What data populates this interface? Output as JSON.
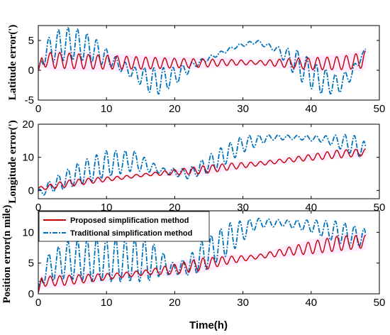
{
  "colors": {
    "proposed": "#c00000",
    "traditional": "#0072bd",
    "band": "#ff00ff"
  },
  "xlabel": "Time(h)",
  "legend": {
    "proposed": "Proposed simplification method",
    "traditional": "Traditional simplification method",
    "placement": "top-left (bottom panel)"
  },
  "chart_data": [
    {
      "type": "line",
      "ylabel": "Latitude error(')",
      "xlim": [
        0,
        50
      ],
      "ylim": [
        -5,
        7.5
      ],
      "xticks": [
        "0",
        "10",
        "20",
        "30",
        "40",
        "50"
      ],
      "yticks": [
        "-5",
        "0",
        "5"
      ],
      "xtick_values": [
        0,
        10,
        20,
        30,
        40,
        50
      ],
      "ytick_values": [
        -5,
        0,
        5
      ],
      "grid": false,
      "series": [
        {
          "name": "Proposed simplification method",
          "osc_period_h": 1.4,
          "x": [
            0,
            0.5,
            2,
            4,
            8,
            12,
            16,
            20,
            24,
            28,
            32,
            36,
            40,
            44,
            46,
            48
          ],
          "trend": [
            0.0,
            1.5,
            1.7,
            1.6,
            1.4,
            1.3,
            1.2,
            1.2,
            1.2,
            1.3,
            1.3,
            1.2,
            1.1,
            1.2,
            1.4,
            1.8
          ],
          "amplitude": [
            0.0,
            0.8,
            1.4,
            1.3,
            1.2,
            1.1,
            1.0,
            0.8,
            0.7,
            0.5,
            0.3,
            0.7,
            1.0,
            1.1,
            1.2,
            1.4
          ]
        },
        {
          "name": "Traditional simplification method",
          "osc_period_h": 1.4,
          "x": [
            0,
            1,
            3,
            5,
            8,
            11,
            14,
            17,
            20,
            23,
            26,
            29,
            32,
            35,
            38,
            41,
            44,
            46,
            48
          ],
          "trend": [
            0.0,
            3.0,
            4.2,
            4.5,
            3.5,
            1.5,
            -0.5,
            -2.0,
            -1.0,
            1.0,
            2.5,
            4.0,
            4.8,
            3.5,
            1.0,
            -1.5,
            -2.5,
            -0.5,
            3.5
          ],
          "amplitude": [
            0.0,
            2.0,
            2.6,
            2.8,
            2.2,
            1.0,
            1.0,
            2.4,
            1.5,
            0.5,
            0.3,
            0.3,
            0.3,
            0.5,
            2.4,
            2.4,
            1.5,
            1.0,
            0.2
          ]
        }
      ]
    },
    {
      "type": "line",
      "ylabel": "Longitude error(')",
      "xlim": [
        0,
        50
      ],
      "ylim": [
        -2.5,
        20
      ],
      "xticks": [
        "0",
        "10",
        "20",
        "30",
        "40",
        "50"
      ],
      "yticks": [
        "0",
        "10",
        "20"
      ],
      "xtick_values": [
        0,
        10,
        20,
        30,
        40,
        50
      ],
      "ytick_values": [
        0,
        10,
        20
      ],
      "grid": false,
      "series": [
        {
          "name": "Proposed simplification method",
          "osc_period_h": 1.4,
          "x": [
            0,
            4,
            8,
            12,
            16,
            20,
            24,
            28,
            32,
            36,
            40,
            44,
            48
          ],
          "trend": [
            0.5,
            2.0,
            3.0,
            3.8,
            4.8,
            5.5,
            6.2,
            7.2,
            8.0,
            9.0,
            10.0,
            11.0,
            11.5
          ],
          "amplitude": [
            0.5,
            1.0,
            0.8,
            0.5,
            0.4,
            0.8,
            1.2,
            1.0,
            0.6,
            0.6,
            0.9,
            1.2,
            1.0
          ]
        },
        {
          "name": "Traditional simplification method",
          "osc_period_h": 1.4,
          "x": [
            0,
            2,
            6,
            10,
            14,
            18,
            22,
            26,
            30,
            34,
            38,
            42,
            46,
            48
          ],
          "trend": [
            -1.0,
            1.5,
            5.0,
            8.0,
            9.0,
            6.0,
            5.0,
            9.0,
            14.0,
            16.0,
            16.0,
            15.5,
            14.0,
            12.0
          ],
          "amplitude": [
            1.0,
            2.0,
            3.5,
            4.0,
            3.0,
            0.8,
            1.5,
            3.0,
            2.5,
            0.8,
            0.6,
            1.0,
            3.0,
            2.5
          ]
        }
      ]
    },
    {
      "type": "line",
      "ylabel": "Position error(n mile)",
      "xlim": [
        0,
        50
      ],
      "ylim": [
        0,
        13.5
      ],
      "xticks": [
        "0",
        "10",
        "20",
        "30",
        "40",
        "50"
      ],
      "yticks": [
        "0",
        "5",
        "10"
      ],
      "xtick_values": [
        0,
        10,
        20,
        30,
        40,
        50
      ],
      "ytick_values": [
        0,
        5,
        10
      ],
      "grid": false,
      "series": [
        {
          "name": "Proposed simplification method",
          "osc_period_h": 1.4,
          "x": [
            0,
            0.5,
            4,
            8,
            12,
            16,
            20,
            24,
            28,
            32,
            36,
            40,
            44,
            48
          ],
          "trend": [
            0.2,
            2.0,
            2.2,
            2.6,
            3.0,
            3.5,
            4.0,
            4.8,
            5.5,
            6.0,
            6.8,
            7.5,
            8.2,
            8.5
          ],
          "amplitude": [
            0.0,
            0.8,
            0.8,
            0.6,
            0.4,
            0.4,
            0.8,
            1.0,
            0.6,
            0.3,
            0.6,
            1.0,
            1.2,
            1.0
          ]
        },
        {
          "name": "Traditional simplification method",
          "osc_period_h": 1.4,
          "x": [
            0,
            1,
            4,
            8,
            12,
            16,
            18,
            20,
            22,
            24,
            28,
            32,
            36,
            40,
            44,
            48
          ],
          "trend": [
            0.5,
            4.0,
            5.5,
            5.5,
            5.5,
            5.5,
            5.0,
            4.0,
            4.5,
            6.0,
            9.0,
            11.5,
            11.5,
            11.0,
            10.0,
            9.0
          ],
          "amplitude": [
            0.5,
            2.0,
            3.0,
            3.5,
            3.5,
            3.5,
            2.0,
            0.8,
            1.5,
            2.5,
            2.5,
            0.8,
            0.5,
            1.0,
            1.8,
            1.5
          ]
        }
      ]
    }
  ]
}
